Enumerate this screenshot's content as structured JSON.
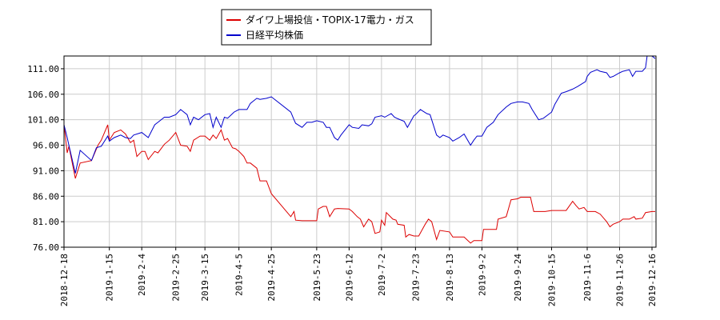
{
  "chart_data": {
    "type": "line",
    "title": "",
    "xlabel": "",
    "ylabel": "",
    "ylim": [
      76.0,
      113.5
    ],
    "yticks": [
      "76.00",
      "81.00",
      "86.00",
      "91.00",
      "96.00",
      "101.00",
      "106.00",
      "111.00"
    ],
    "xticks": [
      "2018-12-18",
      "2019-1-15",
      "2019-2-4",
      "2019-2-25",
      "2019-3-15",
      "2019-4-5",
      "2019-4-25",
      "2019-5-23",
      "2019-6-12",
      "2019-7-2",
      "2019-7-23",
      "2019-8-13",
      "2019-9-2",
      "2019-9-24",
      "2019-10-15",
      "2019-11-6",
      "2019-11-26",
      "2019-12-16"
    ],
    "grid": true,
    "legend_position": "top",
    "series": [
      {
        "name": "ダイワ上場投信・TOPIX-17電力・ガス",
        "color": "#dd0000",
        "points": [
          [
            "2018-12-18",
            100.0
          ],
          [
            "2018-12-20",
            94.5
          ],
          [
            "2018-12-21",
            95.8
          ],
          [
            "2018-12-25",
            89.5
          ],
          [
            "2018-12-27",
            91.5
          ],
          [
            "2018-12-28",
            92.5
          ],
          [
            "2019-1-4",
            93.0
          ],
          [
            "2019-1-8",
            96.0
          ],
          [
            "2019-1-10",
            97.0
          ],
          [
            "2019-1-14",
            100.0
          ],
          [
            "2019-1-15",
            97.0
          ],
          [
            "2019-1-18",
            98.5
          ],
          [
            "2019-1-22",
            99.0
          ],
          [
            "2019-1-25",
            98.2
          ],
          [
            "2019-1-28",
            96.5
          ],
          [
            "2019-1-30",
            97.0
          ],
          [
            "2019-2-1",
            93.8
          ],
          [
            "2019-2-4",
            94.8
          ],
          [
            "2019-2-6",
            94.8
          ],
          [
            "2019-2-8",
            93.2
          ],
          [
            "2019-2-12",
            94.8
          ],
          [
            "2019-2-14",
            94.5
          ],
          [
            "2019-2-18",
            96.2
          ],
          [
            "2019-2-21",
            97.0
          ],
          [
            "2019-2-25",
            98.5
          ],
          [
            "2019-2-28",
            96.0
          ],
          [
            "2019-3-4",
            95.8
          ],
          [
            "2019-3-6",
            94.8
          ],
          [
            "2019-3-8",
            97.0
          ],
          [
            "2019-3-12",
            97.8
          ],
          [
            "2019-3-15",
            97.8
          ],
          [
            "2019-3-18",
            97.0
          ],
          [
            "2019-3-20",
            98.0
          ],
          [
            "2019-3-22",
            97.3
          ],
          [
            "2019-3-25",
            99.0
          ],
          [
            "2019-3-27",
            97.0
          ],
          [
            "2019-3-29",
            97.3
          ],
          [
            "2019-4-1",
            95.5
          ],
          [
            "2019-4-3",
            95.3
          ],
          [
            "2019-4-5",
            94.8
          ],
          [
            "2019-4-8",
            93.8
          ],
          [
            "2019-4-10",
            92.5
          ],
          [
            "2019-4-12",
            92.5
          ],
          [
            "2019-4-16",
            91.5
          ],
          [
            "2019-4-18",
            89.0
          ],
          [
            "2019-4-22",
            89.0
          ],
          [
            "2019-4-25",
            86.5
          ],
          [
            "2019-5-7",
            82.0
          ],
          [
            "2019-5-9",
            83.0
          ],
          [
            "2019-5-10",
            81.3
          ],
          [
            "2019-5-14",
            81.2
          ],
          [
            "2019-5-20",
            81.2
          ],
          [
            "2019-5-23",
            81.2
          ],
          [
            "2019-5-24",
            83.5
          ],
          [
            "2019-5-27",
            84.0
          ],
          [
            "2019-5-29",
            84.0
          ],
          [
            "2019-5-31",
            82.0
          ],
          [
            "2019-6-3",
            83.5
          ],
          [
            "2019-6-5",
            83.6
          ],
          [
            "2019-6-12",
            83.5
          ],
          [
            "2019-6-14",
            83.0
          ],
          [
            "2019-6-17",
            82.0
          ],
          [
            "2019-6-19",
            81.5
          ],
          [
            "2019-6-21",
            80.0
          ],
          [
            "2019-6-24",
            81.5
          ],
          [
            "2019-6-26",
            81.0
          ],
          [
            "2019-6-28",
            78.7
          ],
          [
            "2019-7-1",
            79.0
          ],
          [
            "2019-7-2",
            81.3
          ],
          [
            "2019-7-4",
            80.3
          ],
          [
            "2019-7-5",
            82.8
          ],
          [
            "2019-7-9",
            81.5
          ],
          [
            "2019-7-11",
            81.3
          ],
          [
            "2019-7-12",
            80.5
          ],
          [
            "2019-7-16",
            80.3
          ],
          [
            "2019-7-17",
            78.0
          ],
          [
            "2019-7-19",
            78.5
          ],
          [
            "2019-7-22",
            78.2
          ],
          [
            "2019-7-25",
            78.2
          ],
          [
            "2019-7-29",
            80.5
          ],
          [
            "2019-7-31",
            81.5
          ],
          [
            "2019-8-2",
            81.0
          ],
          [
            "2019-8-5",
            77.5
          ],
          [
            "2019-8-7",
            79.3
          ],
          [
            "2019-8-13",
            79.0
          ],
          [
            "2019-8-15",
            78.0
          ],
          [
            "2019-8-22",
            78.0
          ],
          [
            "2019-8-26",
            76.8
          ],
          [
            "2019-8-28",
            77.3
          ],
          [
            "2019-9-2",
            77.3
          ],
          [
            "2019-9-3",
            79.5
          ],
          [
            "2019-9-11",
            79.5
          ],
          [
            "2019-9-12",
            81.5
          ],
          [
            "2019-9-17",
            82.0
          ],
          [
            "2019-9-20",
            85.3
          ],
          [
            "2019-9-24",
            85.5
          ],
          [
            "2019-9-26",
            85.8
          ],
          [
            "2019-10-2",
            85.8
          ],
          [
            "2019-10-4",
            83.0
          ],
          [
            "2019-10-11",
            83.0
          ],
          [
            "2019-10-15",
            83.2
          ],
          [
            "2019-10-24",
            83.2
          ],
          [
            "2019-10-28",
            85.0
          ],
          [
            "2019-10-30",
            84.2
          ],
          [
            "2019-11-1",
            83.5
          ],
          [
            "2019-11-4",
            83.8
          ],
          [
            "2019-11-6",
            83.0
          ],
          [
            "2019-11-11",
            83.0
          ],
          [
            "2019-11-14",
            82.5
          ],
          [
            "2019-11-18",
            81.0
          ],
          [
            "2019-11-20",
            80.0
          ],
          [
            "2019-11-22",
            80.5
          ],
          [
            "2019-11-26",
            81.0
          ],
          [
            "2019-11-28",
            81.5
          ],
          [
            "2019-12-2",
            81.5
          ],
          [
            "2019-12-5",
            82.0
          ],
          [
            "2019-12-6",
            81.5
          ],
          [
            "2019-12-10",
            81.7
          ],
          [
            "2019-12-12",
            82.8
          ],
          [
            "2019-12-16",
            83.0
          ],
          [
            "2019-12-18",
            83.0
          ]
        ]
      },
      {
        "name": "日経平均株価",
        "color": "#0000cc",
        "points": [
          [
            "2018-12-18",
            100.0
          ],
          [
            "2018-12-20",
            97.5
          ],
          [
            "2018-12-21",
            96.0
          ],
          [
            "2018-12-25",
            90.5
          ],
          [
            "2018-12-27",
            93.5
          ],
          [
            "2018-12-28",
            95.0
          ],
          [
            "2019-1-4",
            93.0
          ],
          [
            "2019-1-7",
            95.5
          ],
          [
            "2019-1-10",
            95.8
          ],
          [
            "2019-1-14",
            97.8
          ],
          [
            "2019-1-15",
            96.8
          ],
          [
            "2019-1-18",
            97.5
          ],
          [
            "2019-1-22",
            98.0
          ],
          [
            "2019-1-25",
            97.5
          ],
          [
            "2019-1-28",
            97.3
          ],
          [
            "2019-1-30",
            98.0
          ],
          [
            "2019-2-4",
            98.5
          ],
          [
            "2019-2-8",
            97.5
          ],
          [
            "2019-2-12",
            100.0
          ],
          [
            "2019-2-14",
            100.5
          ],
          [
            "2019-2-18",
            101.5
          ],
          [
            "2019-2-21",
            101.5
          ],
          [
            "2019-2-25",
            102.0
          ],
          [
            "2019-2-28",
            103.0
          ],
          [
            "2019-3-4",
            102.0
          ],
          [
            "2019-3-6",
            100.0
          ],
          [
            "2019-3-8",
            101.5
          ],
          [
            "2019-3-11",
            101.0
          ],
          [
            "2019-3-15",
            102.0
          ],
          [
            "2019-3-18",
            102.2
          ],
          [
            "2019-3-20",
            99.5
          ],
          [
            "2019-3-22",
            101.5
          ],
          [
            "2019-3-25",
            99.5
          ],
          [
            "2019-3-27",
            101.5
          ],
          [
            "2019-3-29",
            101.3
          ],
          [
            "2019-4-2",
            102.5
          ],
          [
            "2019-4-5",
            103.0
          ],
          [
            "2019-4-8",
            103.0
          ],
          [
            "2019-4-10",
            103.0
          ],
          [
            "2019-4-12",
            104.2
          ],
          [
            "2019-4-16",
            105.2
          ],
          [
            "2019-4-18",
            105.0
          ],
          [
            "2019-4-22",
            105.2
          ],
          [
            "2019-4-25",
            105.5
          ],
          [
            "2019-5-7",
            102.5
          ],
          [
            "2019-5-9",
            101.0
          ],
          [
            "2019-5-10",
            100.3
          ],
          [
            "2019-5-14",
            99.5
          ],
          [
            "2019-5-17",
            100.5
          ],
          [
            "2019-5-20",
            100.5
          ],
          [
            "2019-5-23",
            100.8
          ],
          [
            "2019-5-27",
            100.5
          ],
          [
            "2019-5-29",
            99.5
          ],
          [
            "2019-5-31",
            99.5
          ],
          [
            "2019-6-3",
            97.5
          ],
          [
            "2019-6-5",
            97.0
          ],
          [
            "2019-6-7",
            98.0
          ],
          [
            "2019-6-12",
            100.0
          ],
          [
            "2019-6-14",
            99.5
          ],
          [
            "2019-6-18",
            99.3
          ],
          [
            "2019-6-20",
            100.0
          ],
          [
            "2019-6-24",
            99.8
          ],
          [
            "2019-6-26",
            100.2
          ],
          [
            "2019-6-28",
            101.5
          ],
          [
            "2019-7-2",
            101.8
          ],
          [
            "2019-7-4",
            101.5
          ],
          [
            "2019-7-8",
            102.2
          ],
          [
            "2019-7-10",
            101.5
          ],
          [
            "2019-7-12",
            101.2
          ],
          [
            "2019-7-16",
            100.7
          ],
          [
            "2019-7-18",
            99.5
          ],
          [
            "2019-7-22",
            101.8
          ],
          [
            "2019-7-23",
            102.0
          ],
          [
            "2019-7-26",
            103.0
          ],
          [
            "2019-7-30",
            102.2
          ],
          [
            "2019-8-1",
            102.0
          ],
          [
            "2019-8-5",
            98.0
          ],
          [
            "2019-8-7",
            97.5
          ],
          [
            "2019-8-9",
            98.0
          ],
          [
            "2019-8-13",
            97.5
          ],
          [
            "2019-8-15",
            96.8
          ],
          [
            "2019-8-19",
            97.5
          ],
          [
            "2019-8-22",
            98.2
          ],
          [
            "2019-8-26",
            96.0
          ],
          [
            "2019-8-28",
            97.0
          ],
          [
            "2019-8-30",
            97.8
          ],
          [
            "2019-9-2",
            97.8
          ],
          [
            "2019-9-5",
            99.5
          ],
          [
            "2019-9-9",
            100.5
          ],
          [
            "2019-9-12",
            102.0
          ],
          [
            "2019-9-17",
            103.5
          ],
          [
            "2019-9-20",
            104.2
          ],
          [
            "2019-9-24",
            104.5
          ],
          [
            "2019-9-27",
            104.5
          ],
          [
            "2019-10-1",
            104.2
          ],
          [
            "2019-10-3",
            103.0
          ],
          [
            "2019-10-7",
            101.0
          ],
          [
            "2019-10-10",
            101.3
          ],
          [
            "2019-10-15",
            102.5
          ],
          [
            "2019-10-17",
            104.0
          ],
          [
            "2019-10-21",
            106.2
          ],
          [
            "2019-10-24",
            106.5
          ],
          [
            "2019-10-28",
            107.0
          ],
          [
            "2019-10-31",
            107.5
          ],
          [
            "2019-11-5",
            108.5
          ],
          [
            "2019-11-6",
            109.5
          ],
          [
            "2019-11-8",
            110.3
          ],
          [
            "2019-11-12",
            110.8
          ],
          [
            "2019-11-14",
            110.5
          ],
          [
            "2019-11-18",
            110.2
          ],
          [
            "2019-11-20",
            109.3
          ],
          [
            "2019-11-22",
            109.5
          ],
          [
            "2019-11-26",
            110.2
          ],
          [
            "2019-11-28",
            110.5
          ],
          [
            "2019-12-2",
            110.8
          ],
          [
            "2019-12-4",
            109.5
          ],
          [
            "2019-12-6",
            110.5
          ],
          [
            "2019-12-10",
            110.5
          ],
          [
            "2019-12-12",
            111.2
          ],
          [
            "2019-12-13",
            113.5
          ],
          [
            "2019-12-16",
            113.5
          ],
          [
            "2019-12-18",
            113.0
          ]
        ]
      }
    ]
  },
  "style": {
    "grid_color": "#cccccc",
    "axis_color": "#000000",
    "legend_border": "#000000"
  }
}
